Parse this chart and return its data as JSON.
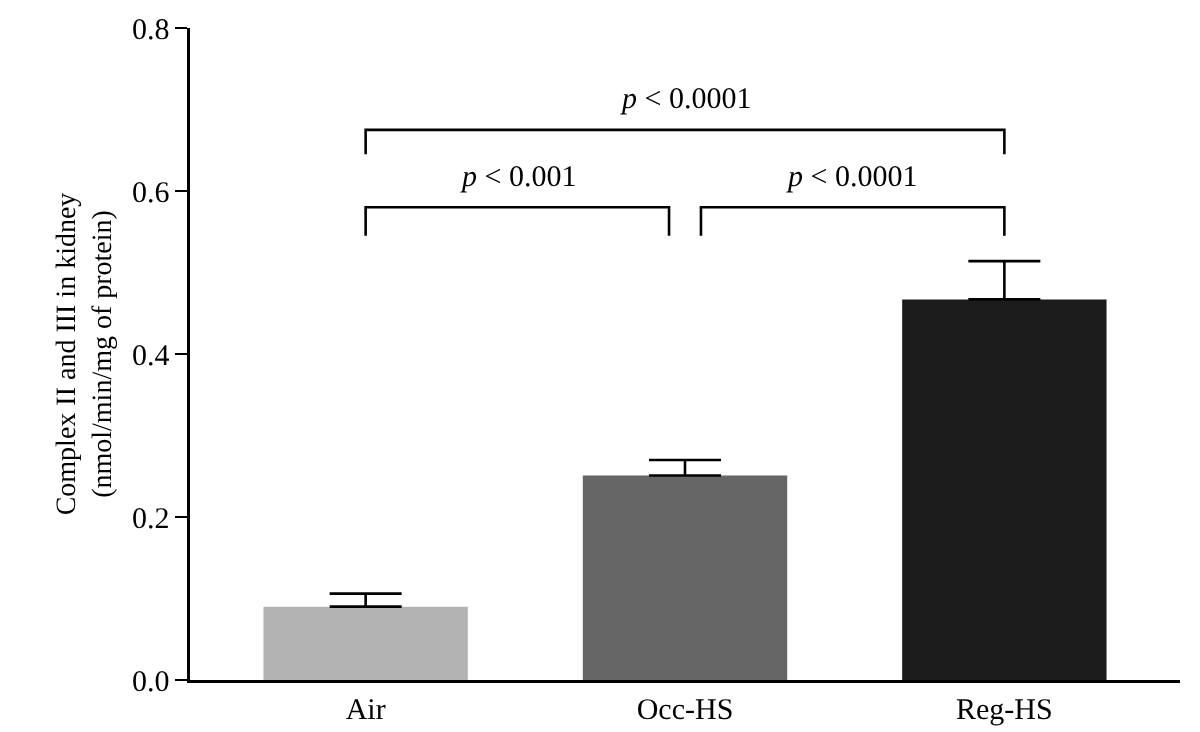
{
  "chart_data": {
    "type": "bar",
    "ylabel": "Complex II and III in kidney\n(nmol/min/mg of protein)",
    "categories": [
      "Air",
      "Occ-HS",
      "Reg-HS"
    ],
    "values": [
      0.09,
      0.251,
      0.467
    ],
    "colors": [
      "#b3b3b3",
      "#666666",
      "#1c1c1c"
    ],
    "errors": [
      [
        0.09,
        0.106
      ],
      [
        0.251,
        0.27
      ],
      [
        0.467,
        0.514
      ]
    ],
    "ylim": [
      0,
      0.8
    ],
    "yticks": [
      {
        "value": 0,
        "label": "0.0"
      },
      {
        "value": 0.2,
        "label": "0.2"
      },
      {
        "value": 0.4,
        "label": "0.4"
      },
      {
        "value": 0.6,
        "label": "0.6"
      },
      {
        "value": 0.8,
        "label": "0.8"
      }
    ],
    "annotations": [
      "p < 0.0001",
      "p < 0.001",
      "p < 0.0001"
    ],
    "grid": false
  }
}
